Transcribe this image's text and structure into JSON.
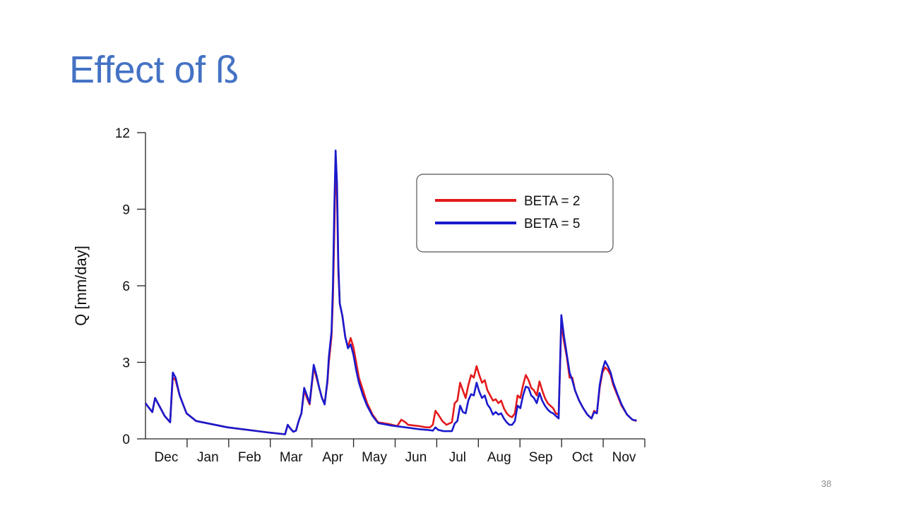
{
  "slide": {
    "title": "Effect of ß",
    "page_number": "38"
  },
  "chart_data": {
    "type": "line",
    "ylabel": "Q [mm/day]",
    "xlabel": "",
    "ylim": [
      0,
      12
    ],
    "yticks": [
      0,
      3,
      6,
      9,
      12
    ],
    "xlim": [
      0,
      365
    ],
    "months": [
      "Dec",
      "Jan",
      "Feb",
      "Mar",
      "Apr",
      "May",
      "Jun",
      "Jul",
      "Aug",
      "Sep",
      "Oct",
      "Nov"
    ],
    "legend": {
      "placement": "top-right"
    },
    "grid": false,
    "series": [
      {
        "name": "BETA = 2",
        "color": "#e41a1c",
        "points": [
          [
            0,
            1.4
          ],
          [
            2,
            1.25
          ],
          [
            5,
            1.05
          ],
          [
            7,
            1.6
          ],
          [
            10,
            1.3
          ],
          [
            14,
            0.9
          ],
          [
            18,
            0.65
          ],
          [
            20,
            2.4
          ],
          [
            22,
            2.3
          ],
          [
            25,
            1.7
          ],
          [
            30,
            1.0
          ],
          [
            37,
            0.7
          ],
          [
            60,
            0.45
          ],
          [
            90,
            0.25
          ],
          [
            102,
            0.18
          ],
          [
            104,
            0.55
          ],
          [
            106,
            0.4
          ],
          [
            108,
            0.28
          ],
          [
            110,
            0.32
          ],
          [
            112,
            0.7
          ],
          [
            114,
            1.0
          ],
          [
            116,
            1.9
          ],
          [
            118,
            1.6
          ],
          [
            120,
            1.35
          ],
          [
            122,
            2.3
          ],
          [
            123,
            2.8
          ],
          [
            125,
            2.4
          ],
          [
            127,
            2.0
          ],
          [
            129,
            1.6
          ],
          [
            131,
            1.4
          ],
          [
            133,
            2.2
          ],
          [
            134,
            3.0
          ],
          [
            136,
            4.0
          ],
          [
            137,
            5.5
          ],
          [
            138,
            8.0
          ],
          [
            139,
            10.8
          ],
          [
            140,
            9.5
          ],
          [
            141,
            6.5
          ],
          [
            142,
            5.3
          ],
          [
            144,
            4.8
          ],
          [
            146,
            4.0
          ],
          [
            148,
            3.6
          ],
          [
            150,
            3.95
          ],
          [
            152,
            3.6
          ],
          [
            154,
            3.0
          ],
          [
            156,
            2.4
          ],
          [
            159,
            1.9
          ],
          [
            162,
            1.4
          ],
          [
            166,
            0.95
          ],
          [
            170,
            0.65
          ],
          [
            178,
            0.58
          ],
          [
            184,
            0.5
          ],
          [
            187,
            0.75
          ],
          [
            190,
            0.65
          ],
          [
            192,
            0.55
          ],
          [
            200,
            0.5
          ],
          [
            205,
            0.45
          ],
          [
            208,
            0.45
          ],
          [
            210,
            0.55
          ],
          [
            212,
            1.1
          ],
          [
            214,
            0.95
          ],
          [
            217,
            0.7
          ],
          [
            220,
            0.55
          ],
          [
            224,
            0.65
          ],
          [
            226,
            1.4
          ],
          [
            228,
            1.5
          ],
          [
            230,
            2.2
          ],
          [
            232,
            1.9
          ],
          [
            234,
            1.6
          ],
          [
            236,
            2.1
          ],
          [
            238,
            2.5
          ],
          [
            240,
            2.4
          ],
          [
            242,
            2.85
          ],
          [
            244,
            2.5
          ],
          [
            246,
            2.2
          ],
          [
            248,
            2.3
          ],
          [
            250,
            1.9
          ],
          [
            252,
            1.7
          ],
          [
            254,
            1.5
          ],
          [
            256,
            1.55
          ],
          [
            258,
            1.4
          ],
          [
            260,
            1.5
          ],
          [
            262,
            1.2
          ],
          [
            264,
            1.0
          ],
          [
            266,
            0.9
          ],
          [
            268,
            0.85
          ],
          [
            270,
            1.0
          ],
          [
            272,
            1.7
          ],
          [
            274,
            1.6
          ],
          [
            276,
            2.1
          ],
          [
            278,
            2.5
          ],
          [
            280,
            2.3
          ],
          [
            282,
            2.0
          ],
          [
            284,
            1.9
          ],
          [
            286,
            1.7
          ],
          [
            288,
            2.25
          ],
          [
            290,
            1.9
          ],
          [
            292,
            1.6
          ],
          [
            294,
            1.4
          ],
          [
            296,
            1.3
          ],
          [
            298,
            1.2
          ],
          [
            300,
            1.0
          ],
          [
            302,
            0.95
          ],
          [
            304,
            4.5
          ],
          [
            306,
            3.8
          ],
          [
            308,
            3.2
          ],
          [
            310,
            2.4
          ],
          [
            312,
            2.4
          ],
          [
            314,
            1.9
          ],
          [
            317,
            1.5
          ],
          [
            320,
            1.2
          ],
          [
            323,
            0.95
          ],
          [
            326,
            0.8
          ],
          [
            328,
            1.1
          ],
          [
            330,
            1.0
          ],
          [
            332,
            2.0
          ],
          [
            334,
            2.6
          ],
          [
            336,
            2.8
          ],
          [
            338,
            2.7
          ],
          [
            340,
            2.5
          ],
          [
            342,
            2.1
          ],
          [
            345,
            1.7
          ],
          [
            348,
            1.3
          ],
          [
            352,
            0.95
          ],
          [
            356,
            0.75
          ],
          [
            359,
            0.7
          ]
        ]
      },
      {
        "name": "BETA = 5",
        "color": "#1a1acd",
        "points": [
          [
            0,
            1.4
          ],
          [
            2,
            1.25
          ],
          [
            5,
            1.05
          ],
          [
            7,
            1.6
          ],
          [
            10,
            1.3
          ],
          [
            14,
            0.9
          ],
          [
            18,
            0.65
          ],
          [
            20,
            2.6
          ],
          [
            22,
            2.4
          ],
          [
            25,
            1.7
          ],
          [
            30,
            1.0
          ],
          [
            37,
            0.7
          ],
          [
            60,
            0.45
          ],
          [
            90,
            0.25
          ],
          [
            102,
            0.18
          ],
          [
            104,
            0.55
          ],
          [
            106,
            0.4
          ],
          [
            108,
            0.28
          ],
          [
            110,
            0.32
          ],
          [
            112,
            0.7
          ],
          [
            114,
            1.0
          ],
          [
            116,
            2.0
          ],
          [
            118,
            1.7
          ],
          [
            120,
            1.4
          ],
          [
            122,
            2.4
          ],
          [
            123,
            2.9
          ],
          [
            125,
            2.5
          ],
          [
            127,
            2.0
          ],
          [
            129,
            1.6
          ],
          [
            131,
            1.35
          ],
          [
            133,
            2.3
          ],
          [
            134,
            3.2
          ],
          [
            136,
            4.2
          ],
          [
            137,
            6.0
          ],
          [
            138,
            9.0
          ],
          [
            139,
            11.3
          ],
          [
            140,
            10.0
          ],
          [
            141,
            6.8
          ],
          [
            142,
            5.3
          ],
          [
            144,
            4.8
          ],
          [
            146,
            4.0
          ],
          [
            148,
            3.55
          ],
          [
            150,
            3.7
          ],
          [
            152,
            3.3
          ],
          [
            154,
            2.7
          ],
          [
            156,
            2.2
          ],
          [
            159,
            1.7
          ],
          [
            162,
            1.3
          ],
          [
            166,
            0.9
          ],
          [
            170,
            0.62
          ],
          [
            180,
            0.52
          ],
          [
            190,
            0.45
          ],
          [
            200,
            0.38
          ],
          [
            208,
            0.34
          ],
          [
            210,
            0.32
          ],
          [
            212,
            0.45
          ],
          [
            214,
            0.35
          ],
          [
            218,
            0.3
          ],
          [
            224,
            0.3
          ],
          [
            226,
            0.6
          ],
          [
            228,
            0.7
          ],
          [
            230,
            1.3
          ],
          [
            232,
            1.05
          ],
          [
            234,
            1.0
          ],
          [
            236,
            1.5
          ],
          [
            238,
            1.75
          ],
          [
            240,
            1.7
          ],
          [
            242,
            2.2
          ],
          [
            244,
            1.85
          ],
          [
            246,
            1.6
          ],
          [
            248,
            1.7
          ],
          [
            250,
            1.35
          ],
          [
            252,
            1.2
          ],
          [
            254,
            0.95
          ],
          [
            256,
            1.05
          ],
          [
            258,
            0.95
          ],
          [
            260,
            1.0
          ],
          [
            262,
            0.8
          ],
          [
            264,
            0.65
          ],
          [
            266,
            0.55
          ],
          [
            268,
            0.55
          ],
          [
            270,
            0.7
          ],
          [
            272,
            1.3
          ],
          [
            274,
            1.2
          ],
          [
            276,
            1.7
          ],
          [
            278,
            2.05
          ],
          [
            280,
            2.0
          ],
          [
            282,
            1.7
          ],
          [
            284,
            1.6
          ],
          [
            286,
            1.4
          ],
          [
            288,
            1.8
          ],
          [
            290,
            1.5
          ],
          [
            292,
            1.3
          ],
          [
            294,
            1.15
          ],
          [
            296,
            1.05
          ],
          [
            298,
            1.0
          ],
          [
            300,
            0.9
          ],
          [
            302,
            0.8
          ],
          [
            304,
            4.85
          ],
          [
            306,
            4.0
          ],
          [
            308,
            3.3
          ],
          [
            310,
            2.6
          ],
          [
            312,
            2.3
          ],
          [
            314,
            1.9
          ],
          [
            317,
            1.5
          ],
          [
            320,
            1.2
          ],
          [
            323,
            0.95
          ],
          [
            326,
            0.8
          ],
          [
            328,
            1.05
          ],
          [
            330,
            1.0
          ],
          [
            332,
            2.1
          ],
          [
            334,
            2.7
          ],
          [
            336,
            3.05
          ],
          [
            338,
            2.85
          ],
          [
            340,
            2.6
          ],
          [
            342,
            2.2
          ],
          [
            345,
            1.75
          ],
          [
            348,
            1.35
          ],
          [
            352,
            0.95
          ],
          [
            356,
            0.75
          ],
          [
            359,
            0.72
          ]
        ]
      }
    ]
  }
}
